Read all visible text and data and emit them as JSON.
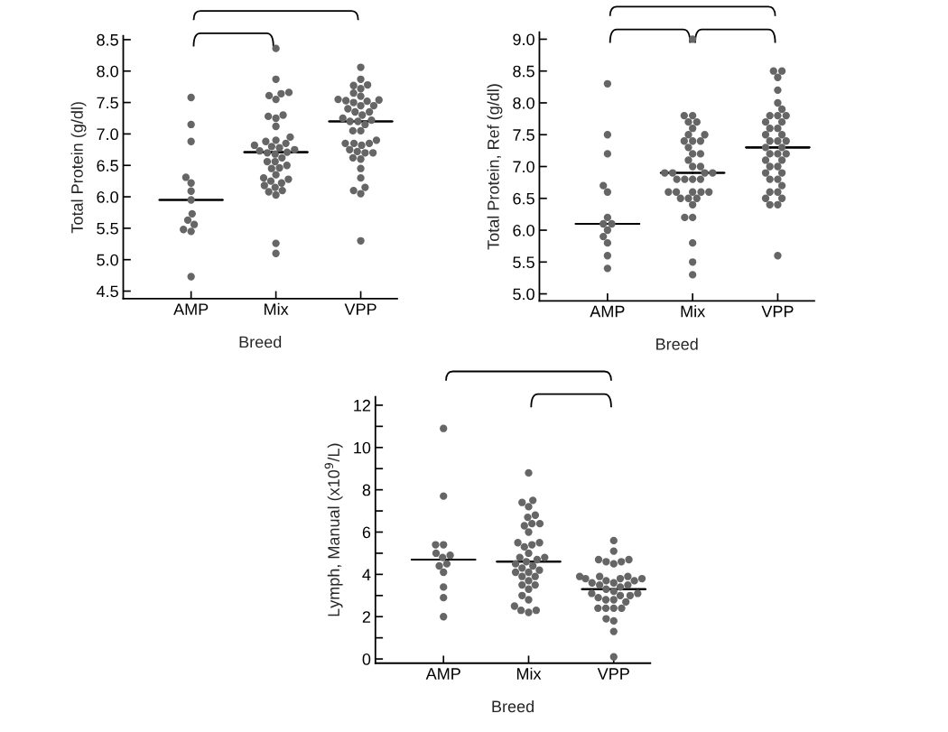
{
  "chart_data": [
    {
      "type": "scatter",
      "categories": [
        "AMP",
        "Mix",
        "VPP"
      ],
      "xlabel": "Breed",
      "ylabel": "Total Protein (g/dl)",
      "ylim": [
        4.38,
        8.56
      ],
      "yticks": [
        4.5,
        {
          "value": 5,
          "label": "5.0"
        },
        5.5,
        {
          "value": 6,
          "label": "6.0"
        },
        6.5,
        {
          "value": 7,
          "label": "7.0"
        },
        7.5,
        {
          "value": 8,
          "label": "8.0"
        },
        8.5
      ],
      "marker": "circle",
      "grid": false,
      "legend": false,
      "series": [
        {
          "type": "scatter",
          "color": "#666666",
          "x": [
            "AMP",
            "AMP",
            "AMP",
            "AMP",
            "AMP",
            "AMP",
            "AMP",
            "AMP",
            "AMP",
            "AMP",
            "AMP",
            "AMP",
            "AMP"
          ],
          "values": [
            7.58,
            7.15,
            6.88,
            6.31,
            6.22,
            6.09,
            5.95,
            5.73,
            5.63,
            5.56,
            5.48,
            5.45,
            4.73
          ]
        },
        {
          "type": "scatter",
          "color": "#666666",
          "x": [
            "Mix",
            "Mix",
            "Mix",
            "Mix",
            "Mix",
            "Mix",
            "Mix",
            "Mix",
            "Mix",
            "Mix",
            "Mix",
            "Mix",
            "Mix",
            "Mix",
            "Mix",
            "Mix",
            "Mix",
            "Mix",
            "Mix",
            "Mix",
            "Mix",
            "Mix",
            "Mix",
            "Mix",
            "Mix",
            "Mix",
            "Mix",
            "Mix",
            "Mix",
            "Mix",
            "Mix",
            "Mix",
            "Mix",
            "Mix",
            "Mix",
            "Mix",
            "Mix",
            "Mix",
            "Mix",
            "Mix"
          ],
          "values": [
            8.36,
            7.87,
            7.66,
            7.64,
            7.61,
            7.55,
            7.3,
            7.28,
            7.25,
            7.12,
            6.95,
            6.9,
            6.88,
            6.85,
            6.82,
            6.8,
            6.78,
            6.75,
            6.73,
            6.71,
            6.7,
            6.68,
            6.62,
            6.56,
            6.56,
            6.5,
            6.46,
            6.45,
            6.35,
            6.3,
            6.28,
            6.25,
            6.22,
            6.18,
            6.15,
            6.1,
            6.08,
            6.03,
            5.26,
            5.1
          ]
        },
        {
          "type": "scatter",
          "color": "#666666",
          "x": [
            "VPP",
            "VPP",
            "VPP",
            "VPP",
            "VPP",
            "VPP",
            "VPP",
            "VPP",
            "VPP",
            "VPP",
            "VPP",
            "VPP",
            "VPP",
            "VPP",
            "VPP",
            "VPP",
            "VPP",
            "VPP",
            "VPP",
            "VPP",
            "VPP",
            "VPP",
            "VPP",
            "VPP",
            "VPP",
            "VPP",
            "VPP",
            "VPP",
            "VPP",
            "VPP",
            "VPP",
            "VPP",
            "VPP",
            "VPP",
            "VPP",
            "VPP",
            "VPP",
            "VPP",
            "VPP",
            "VPP",
            "VPP",
            "VPP"
          ],
          "values": [
            8.06,
            7.87,
            7.78,
            7.77,
            7.72,
            7.65,
            7.6,
            7.55,
            7.54,
            7.53,
            7.52,
            7.5,
            7.45,
            7.45,
            7.4,
            7.35,
            7.35,
            7.3,
            7.25,
            7.22,
            7.2,
            7.2,
            7.15,
            7.05,
            7.05,
            6.9,
            6.85,
            6.85,
            6.85,
            6.82,
            6.75,
            6.72,
            6.7,
            6.7,
            6.62,
            6.6,
            6.45,
            6.3,
            6.15,
            6.1,
            6.05,
            5.3
          ]
        },
        {
          "type": "box",
          "color": "#000000",
          "boxes": [
            {
              "low": 5.95,
              "q1": 5.95,
              "median": 5.95,
              "q3": 5.95,
              "high": 5.95
            },
            {
              "low": 6.71,
              "q1": 6.71,
              "median": 6.71,
              "q3": 6.71,
              "high": 6.71
            },
            {
              "low": 7.2,
              "q1": 7.2,
              "median": 7.2,
              "q3": 7.2,
              "high": 7.2
            }
          ]
        }
      ]
    },
    {
      "type": "scatter",
      "categories": [
        "AMP",
        "Mix",
        "VPP"
      ],
      "xlabel": "Breed",
      "ylabel": "Total Protein, Ref (g/dl)",
      "ylim": [
        4.89,
        9.11
      ],
      "yticks": [
        {
          "value": 5,
          "label": "5.0"
        },
        5.5,
        {
          "value": 6,
          "label": "6.0"
        },
        6.5,
        {
          "value": 7,
          "label": "7.0"
        },
        7.5,
        {
          "value": 8,
          "label": "8.0"
        },
        8.5,
        {
          "value": 9,
          "label": "9.0"
        }
      ],
      "marker": "circle",
      "grid": false,
      "legend": false,
      "series": [
        {
          "type": "scatter",
          "color": "#666666",
          "x": [
            "AMP",
            "AMP",
            "AMP",
            "AMP",
            "AMP",
            "AMP",
            "AMP",
            "AMP",
            "AMP",
            "AMP",
            "AMP",
            "AMP",
            "AMP"
          ],
          "values": [
            8.3,
            7.5,
            7.2,
            6.7,
            6.6,
            6.2,
            6.1,
            6.1,
            6.0,
            5.9,
            5.8,
            5.6,
            5.4
          ]
        },
        {
          "type": "scatter",
          "color": "#666666",
          "x": [
            "Mix",
            "Mix",
            "Mix",
            "Mix",
            "Mix",
            "Mix",
            "Mix",
            "Mix",
            "Mix",
            "Mix",
            "Mix",
            "Mix",
            "Mix",
            "Mix",
            "Mix",
            "Mix",
            "Mix",
            "Mix",
            "Mix",
            "Mix",
            "Mix",
            "Mix",
            "Mix",
            "Mix",
            "Mix",
            "Mix",
            "Mix",
            "Mix",
            "Mix",
            "Mix",
            "Mix",
            "Mix",
            "Mix",
            "Mix",
            "Mix",
            "Mix",
            "Mix",
            "Mix",
            "Mix"
          ],
          "values": [
            9.0,
            7.8,
            7.8,
            7.7,
            7.7,
            7.6,
            7.5,
            7.5,
            7.4,
            7.4,
            7.4,
            7.3,
            7.2,
            7.2,
            7.1,
            7.0,
            7.0,
            6.9,
            6.9,
            6.9,
            6.9,
            6.8,
            6.8,
            6.8,
            6.8,
            6.6,
            6.6,
            6.6,
            6.6,
            6.6,
            6.5,
            6.5,
            6.5,
            6.4,
            6.2,
            6.2,
            5.8,
            5.5,
            5.3
          ]
        },
        {
          "type": "scatter",
          "color": "#666666",
          "x": [
            "VPP",
            "VPP",
            "VPP",
            "VPP",
            "VPP",
            "VPP",
            "VPP",
            "VPP",
            "VPP",
            "VPP",
            "VPP",
            "VPP",
            "VPP",
            "VPP",
            "VPP",
            "VPP",
            "VPP",
            "VPP",
            "VPP",
            "VPP",
            "VPP",
            "VPP",
            "VPP",
            "VPP",
            "VPP",
            "VPP",
            "VPP",
            "VPP",
            "VPP",
            "VPP",
            "VPP",
            "VPP",
            "VPP",
            "VPP",
            "VPP",
            "VPP",
            "VPP",
            "VPP",
            "VPP"
          ],
          "values": [
            8.5,
            8.5,
            8.4,
            8.2,
            8.0,
            7.9,
            7.8,
            7.8,
            7.8,
            7.7,
            7.7,
            7.6,
            7.6,
            7.5,
            7.5,
            7.4,
            7.4,
            7.4,
            7.3,
            7.3,
            7.2,
            7.2,
            7.2,
            7.1,
            7.1,
            7.0,
            7.0,
            6.9,
            6.9,
            6.8,
            6.8,
            6.7,
            6.6,
            6.6,
            6.5,
            6.5,
            6.4,
            6.4,
            5.6
          ]
        },
        {
          "type": "box",
          "color": "#000000",
          "boxes": [
            {
              "low": 6.1,
              "q1": 6.1,
              "median": 6.1,
              "q3": 6.1,
              "high": 6.1
            },
            {
              "low": 6.9,
              "q1": 6.9,
              "median": 6.9,
              "q3": 6.9,
              "high": 6.9
            },
            {
              "low": 7.3,
              "q1": 7.3,
              "median": 7.3,
              "q3": 7.3,
              "high": 7.3
            }
          ]
        }
      ]
    },
    {
      "type": "scatter",
      "categories": [
        "AMP",
        "Mix",
        "VPP"
      ],
      "xlabel": "Breed",
      "ylabel": "Lymph, Manual (x10$^{9}$/L)",
      "ylim": [
        -0.2,
        12.4
      ],
      "yticks": [
        0,
        {
          "value": 1,
          "label": null
        },
        2,
        {
          "value": 3,
          "label": null
        },
        4,
        {
          "value": 5,
          "label": null
        },
        6,
        {
          "value": 7,
          "label": null
        },
        8,
        {
          "value": 9,
          "label": null
        },
        10,
        {
          "value": 11,
          "label": null
        },
        12
      ],
      "marker": "circle",
      "grid": false,
      "legend": false,
      "series": [
        {
          "type": "scatter",
          "color": "#666666",
          "x": [
            "AMP",
            "AMP",
            "AMP",
            "AMP",
            "AMP",
            "AMP",
            "AMP",
            "AMP",
            "AMP",
            "AMP",
            "AMP",
            "AMP",
            "AMP"
          ],
          "values": [
            10.9,
            7.7,
            5.4,
            5.4,
            5.0,
            4.9,
            4.8,
            4.5,
            4.4,
            4.1,
            3.4,
            2.9,
            2.0
          ]
        },
        {
          "type": "scatter",
          "color": "#666666",
          "x": [
            "Mix",
            "Mix",
            "Mix",
            "Mix",
            "Mix",
            "Mix",
            "Mix",
            "Mix",
            "Mix",
            "Mix",
            "Mix",
            "Mix",
            "Mix",
            "Mix",
            "Mix",
            "Mix",
            "Mix",
            "Mix",
            "Mix",
            "Mix",
            "Mix",
            "Mix",
            "Mix",
            "Mix",
            "Mix",
            "Mix",
            "Mix",
            "Mix",
            "Mix",
            "Mix",
            "Mix",
            "Mix",
            "Mix",
            "Mix",
            "Mix",
            "Mix",
            "Mix"
          ],
          "values": [
            8.8,
            7.5,
            7.4,
            7.2,
            6.8,
            6.7,
            6.4,
            6.4,
            6.3,
            6.0,
            5.5,
            5.5,
            5.4,
            5.3,
            5.0,
            4.8,
            4.8,
            4.7,
            4.6,
            4.5,
            4.4,
            4.3,
            4.2,
            4.1,
            4.1,
            3.9,
            3.9,
            3.7,
            3.5,
            3.5,
            3.3,
            3.0,
            2.8,
            2.5,
            2.3,
            2.3,
            2.2
          ]
        },
        {
          "type": "scatter",
          "color": "#666666",
          "x": [
            "VPP",
            "VPP",
            "VPP",
            "VPP",
            "VPP",
            "VPP",
            "VPP",
            "VPP",
            "VPP",
            "VPP",
            "VPP",
            "VPP",
            "VPP",
            "VPP",
            "VPP",
            "VPP",
            "VPP",
            "VPP",
            "VPP",
            "VPP",
            "VPP",
            "VPP",
            "VPP",
            "VPP",
            "VPP",
            "VPP",
            "VPP",
            "VPP",
            "VPP",
            "VPP",
            "VPP",
            "VPP",
            "VPP",
            "VPP",
            "VPP",
            "VPP",
            "VPP",
            "VPP"
          ],
          "values": [
            5.6,
            5.1,
            4.7,
            4.7,
            4.6,
            4.6,
            4.5,
            3.9,
            3.9,
            3.9,
            3.8,
            3.8,
            3.8,
            3.7,
            3.7,
            3.6,
            3.6,
            3.5,
            3.5,
            3.4,
            3.3,
            3.2,
            3.1,
            3.1,
            3.0,
            3.0,
            2.9,
            2.8,
            2.8,
            2.7,
            2.4,
            2.4,
            2.4,
            2.4,
            1.9,
            1.8,
            1.3,
            0.1
          ]
        },
        {
          "type": "box",
          "color": "#000000",
          "boxes": [
            {
              "low": 4.7,
              "q1": 4.7,
              "median": 4.7,
              "q3": 4.7,
              "high": 4.7
            },
            {
              "low": 4.6,
              "q1": 4.6,
              "median": 4.6,
              "q3": 4.6,
              "high": 4.6
            },
            {
              "low": 3.3,
              "q1": 3.3,
              "median": 3.3,
              "q3": 3.3,
              "high": 3.3
            }
          ]
        }
      ]
    }
  ]
}
